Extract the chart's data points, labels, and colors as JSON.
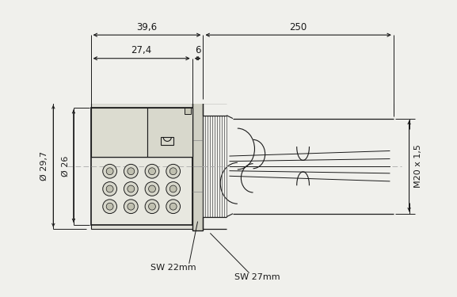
{
  "bg_color": "#f0f0ec",
  "line_color": "#1a1a1a",
  "dim_color": "#1a1a1a",
  "dim_396_label": "39,6",
  "dim_250_label": "250",
  "dim_274_label": "27,4",
  "dim_6_label": "6",
  "dim_297_label": "Ø 29,7",
  "dim_26_label": "Ø 26",
  "dim_m20_label": "M20 x 1,5",
  "sw22_label": "SW 22mm",
  "sw27_label": "SW 27mm"
}
